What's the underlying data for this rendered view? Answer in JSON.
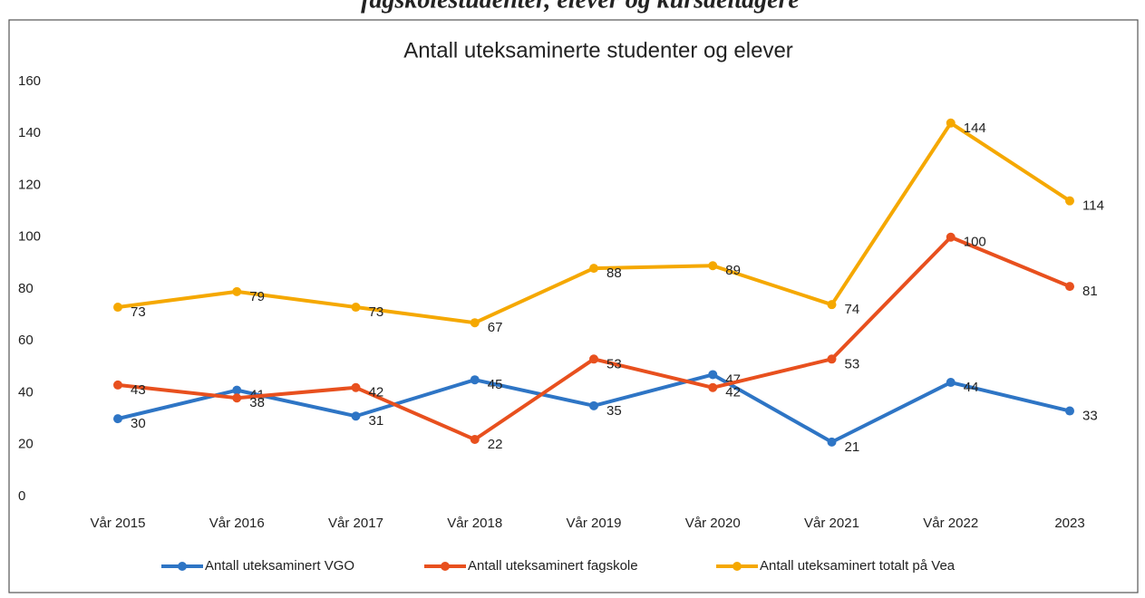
{
  "chart_data": {
    "type": "line",
    "heading": "fagskolestudenter, elever og kursdeltagere",
    "title": "Antall uteksaminerte studenter og elever",
    "categories": [
      "Vår 2015",
      "Vår 2016",
      "Vår 2017",
      "Vår 2018",
      "Vår 2019",
      "Vår 2020",
      "Vår 2021",
      "Vår 2022",
      "2023"
    ],
    "series": [
      {
        "name": "Antall uteksaminert VGO",
        "color": "#2e75c5",
        "values": [
          30,
          41,
          31,
          45,
          35,
          47,
          21,
          44,
          33
        ]
      },
      {
        "name": "Antall uteksaminert fagskole",
        "color": "#e8501e",
        "values": [
          43,
          38,
          42,
          22,
          53,
          42,
          53,
          100,
          81
        ]
      },
      {
        "name": "Antall uteksaminert totalt på Vea",
        "color": "#f5a800",
        "values": [
          73,
          79,
          73,
          67,
          88,
          89,
          74,
          144,
          114
        ]
      }
    ],
    "ylim": [
      0,
      160
    ],
    "yticks": [
      0,
      20,
      40,
      60,
      80,
      100,
      120,
      140,
      160
    ],
    "grid": false,
    "data_labels": true,
    "legend": "bottom"
  }
}
